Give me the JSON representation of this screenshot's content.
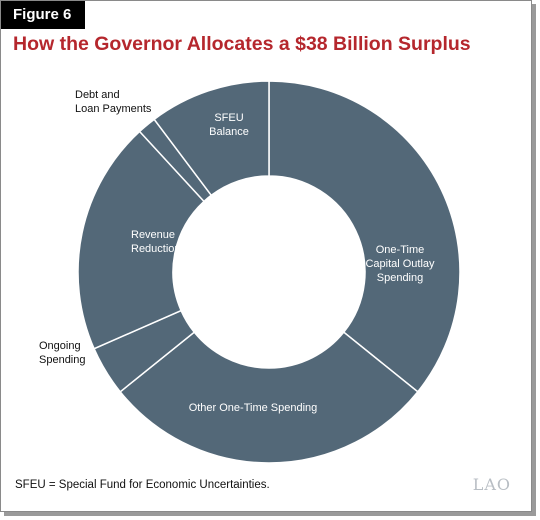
{
  "figure_label": "Figure 6",
  "footnote": "SFEU = Special Fund for Economic Uncertainties.",
  "logo_text": "LAO",
  "colors": {
    "title": "#b5272d",
    "slice": "#536878",
    "slice_border": "#ffffff",
    "inside_label": "#ffffff",
    "outside_label": "#111111"
  },
  "chart_data": {
    "type": "pie",
    "donut": true,
    "title": "How the Governor Allocates a $38 Billion Surplus",
    "total": 38,
    "unit": "billion dollars",
    "slices": [
      {
        "label": "One-Time Capital Outlay Spending",
        "lines": [
          "One-Time",
          "Capital Outlay",
          "Spending"
        ],
        "value": 13.6,
        "label_position": "inside"
      },
      {
        "label": "Other One-Time Spending",
        "lines": [
          "Other One-Time Spending"
        ],
        "value": 10.8,
        "label_position": "inside"
      },
      {
        "label": "Ongoing Spending",
        "lines": [
          "Ongoing",
          "Spending"
        ],
        "value": 1.6,
        "label_position": "outside"
      },
      {
        "label": "Revenue Reductions",
        "lines": [
          "Revenue",
          "Reductions"
        ],
        "value": 7.5,
        "label_position": "inside"
      },
      {
        "label": "Debt and Loan Payments",
        "lines": [
          "Debt and",
          "Loan Payments"
        ],
        "value": 0.6,
        "label_position": "outside"
      },
      {
        "label": "SFEU Balance",
        "lines": [
          "SFEU",
          "Balance"
        ],
        "value": 3.9,
        "label_position": "inside"
      }
    ]
  }
}
